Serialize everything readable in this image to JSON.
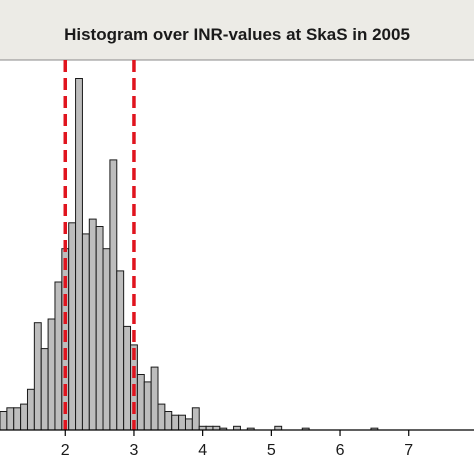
{
  "chart_data": {
    "type": "bar",
    "title": "Histogram over INR-values at SkaS in 2005",
    "xlabel": "",
    "ylabel": "",
    "xlim": [
      1.05,
      7.95
    ],
    "ylim": [
      0,
      100
    ],
    "x_ticks": [
      "2",
      "3",
      "4",
      "5",
      "6",
      "7"
    ],
    "grid": false,
    "bin_width": 0.1,
    "bins": [
      {
        "x": 1.1,
        "value": 5
      },
      {
        "x": 1.2,
        "value": 6
      },
      {
        "x": 1.3,
        "value": 6
      },
      {
        "x": 1.4,
        "value": 7
      },
      {
        "x": 1.5,
        "value": 11
      },
      {
        "x": 1.6,
        "value": 29
      },
      {
        "x": 1.7,
        "value": 22
      },
      {
        "x": 1.8,
        "value": 30
      },
      {
        "x": 1.9,
        "value": 40
      },
      {
        "x": 2.0,
        "value": 49
      },
      {
        "x": 2.1,
        "value": 56
      },
      {
        "x": 2.2,
        "value": 95
      },
      {
        "x": 2.3,
        "value": 53
      },
      {
        "x": 2.4,
        "value": 57
      },
      {
        "x": 2.5,
        "value": 55
      },
      {
        "x": 2.6,
        "value": 49
      },
      {
        "x": 2.7,
        "value": 73
      },
      {
        "x": 2.8,
        "value": 43
      },
      {
        "x": 2.9,
        "value": 28
      },
      {
        "x": 3.0,
        "value": 23
      },
      {
        "x": 3.1,
        "value": 15
      },
      {
        "x": 3.2,
        "value": 13
      },
      {
        "x": 3.3,
        "value": 17
      },
      {
        "x": 3.4,
        "value": 7
      },
      {
        "x": 3.5,
        "value": 5
      },
      {
        "x": 3.6,
        "value": 4
      },
      {
        "x": 3.7,
        "value": 4
      },
      {
        "x": 3.8,
        "value": 3
      },
      {
        "x": 3.9,
        "value": 6
      },
      {
        "x": 4.0,
        "value": 1
      },
      {
        "x": 4.1,
        "value": 1
      },
      {
        "x": 4.2,
        "value": 1
      },
      {
        "x": 4.3,
        "value": 0.5
      },
      {
        "x": 4.5,
        "value": 1
      },
      {
        "x": 4.7,
        "value": 0.5
      },
      {
        "x": 5.1,
        "value": 1
      },
      {
        "x": 5.5,
        "value": 0.5
      },
      {
        "x": 6.5,
        "value": 0.5
      }
    ],
    "reference_lines": [
      {
        "x": 2.0,
        "color": "#e0141e",
        "style": "dashed"
      },
      {
        "x": 3.0,
        "color": "#e0141e",
        "style": "dashed"
      }
    ],
    "colors": {
      "bar_fill": "#bdbdbd",
      "bar_stroke": "#1a1a1a",
      "title_band": "#ecebe6",
      "axis": "#000000",
      "reference": "#e0141e"
    }
  }
}
